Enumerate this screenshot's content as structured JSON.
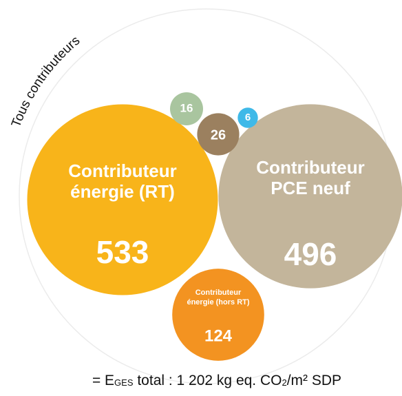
{
  "chart_data": {
    "type": "bubble",
    "group_label": "Tous contributeurs",
    "labels": [
      [
        "Contributeur",
        "énergie (RT)"
      ],
      [
        "Contributeur",
        "PCE neuf"
      ],
      [
        "Contributeur",
        "énergie (hors RT)"
      ],
      null,
      null,
      null
    ],
    "values": [
      533,
      496,
      124,
      26,
      16,
      6
    ],
    "colors": [
      "#f8b41a",
      "#c3b59b",
      "#f39321",
      "#9b805f",
      "#a9c59f",
      "#3fb9e8"
    ],
    "footer": [
      "= E",
      "GES",
      " total :  1 202 kg eq. CO",
      "2",
      "/m² SDP"
    ]
  }
}
